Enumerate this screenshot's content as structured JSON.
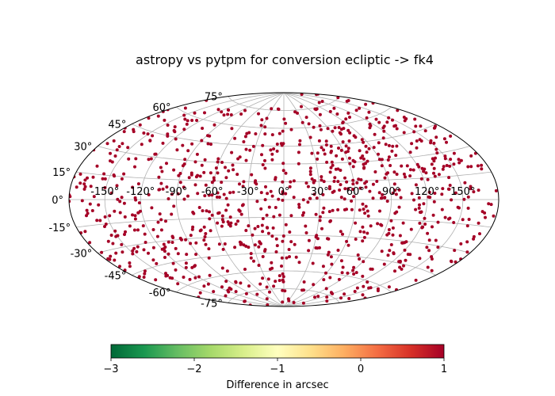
{
  "chart_data": {
    "type": "scatter",
    "projection": "aitoff",
    "title": "astropy vs pytpm for conversion ecliptic -> fk4",
    "grid": true,
    "longitude_tick_labels": [
      "-150°",
      "-120°",
      "-90°",
      "-60°",
      "-30°",
      "0°",
      "30°",
      "60°",
      "90°",
      "120°",
      "150°"
    ],
    "latitude_tick_labels": [
      "-75°",
      "-60°",
      "-45°",
      "-30°",
      "-15°",
      "0°",
      "15°",
      "30°",
      "45°",
      "60°",
      "75°"
    ],
    "point_color": "#a50026",
    "point_value_arcsec": 1,
    "n_points": 1000,
    "colorbar": {
      "label": "Difference in arcsec",
      "vmin": -3,
      "vmax": 1,
      "tick_labels": [
        "−3",
        "−2",
        "−1",
        "0",
        "1"
      ],
      "colormap": "RdYlGn_r",
      "colors": [
        "#006837",
        "#1a9850",
        "#66bd63",
        "#a6d96a",
        "#d9ef8b",
        "#ffffbf",
        "#fee08b",
        "#fdae61",
        "#f46d43",
        "#d73027",
        "#a50026"
      ]
    }
  }
}
